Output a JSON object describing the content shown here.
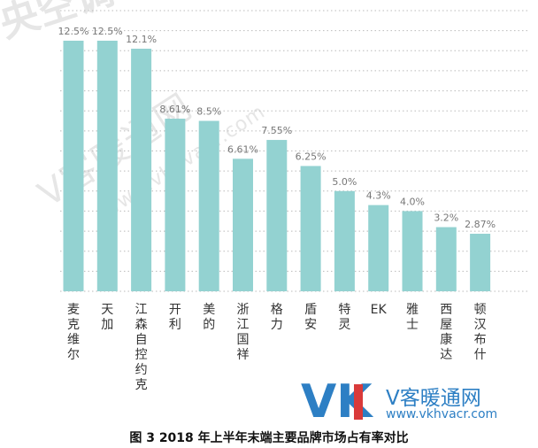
{
  "watermarks": {
    "top": "央空调市场",
    "middle": "V客暖通网",
    "url": "www.vkhvacr.com"
  },
  "logo": {
    "mark": "VK",
    "name": "V客暖通网",
    "url": "www.vkhvacr.com"
  },
  "caption": "图 3   2018 年上半年末端主要品牌市场占有率对比",
  "colors": {
    "bar": "#93d2d1",
    "grid": "#bbbbbb",
    "label": "#777777"
  },
  "chart_data": {
    "type": "bar",
    "categories": [
      "麦克维尔",
      "天加",
      "江森自控约克",
      "开利",
      "美的",
      "浙江国祥",
      "格力",
      "盾安",
      "特灵",
      "EK",
      "雅士",
      "西屋康达",
      "顿汉布什"
    ],
    "values": [
      12.5,
      12.5,
      12.1,
      8.61,
      8.5,
      6.61,
      7.55,
      6.25,
      5.0,
      4.3,
      4.0,
      3.2,
      2.87
    ],
    "data_labels": [
      "12.5%",
      "12.5%",
      "12.1%",
      "8.61%",
      "8.5%",
      "6.61%",
      "7.55%",
      "6.25%",
      "5.0%",
      "4.3%",
      "4.0%",
      "3.2%",
      "2.87%"
    ],
    "ylim": [
      0,
      14
    ],
    "grid": true,
    "xlabel": "",
    "ylabel": ""
  }
}
